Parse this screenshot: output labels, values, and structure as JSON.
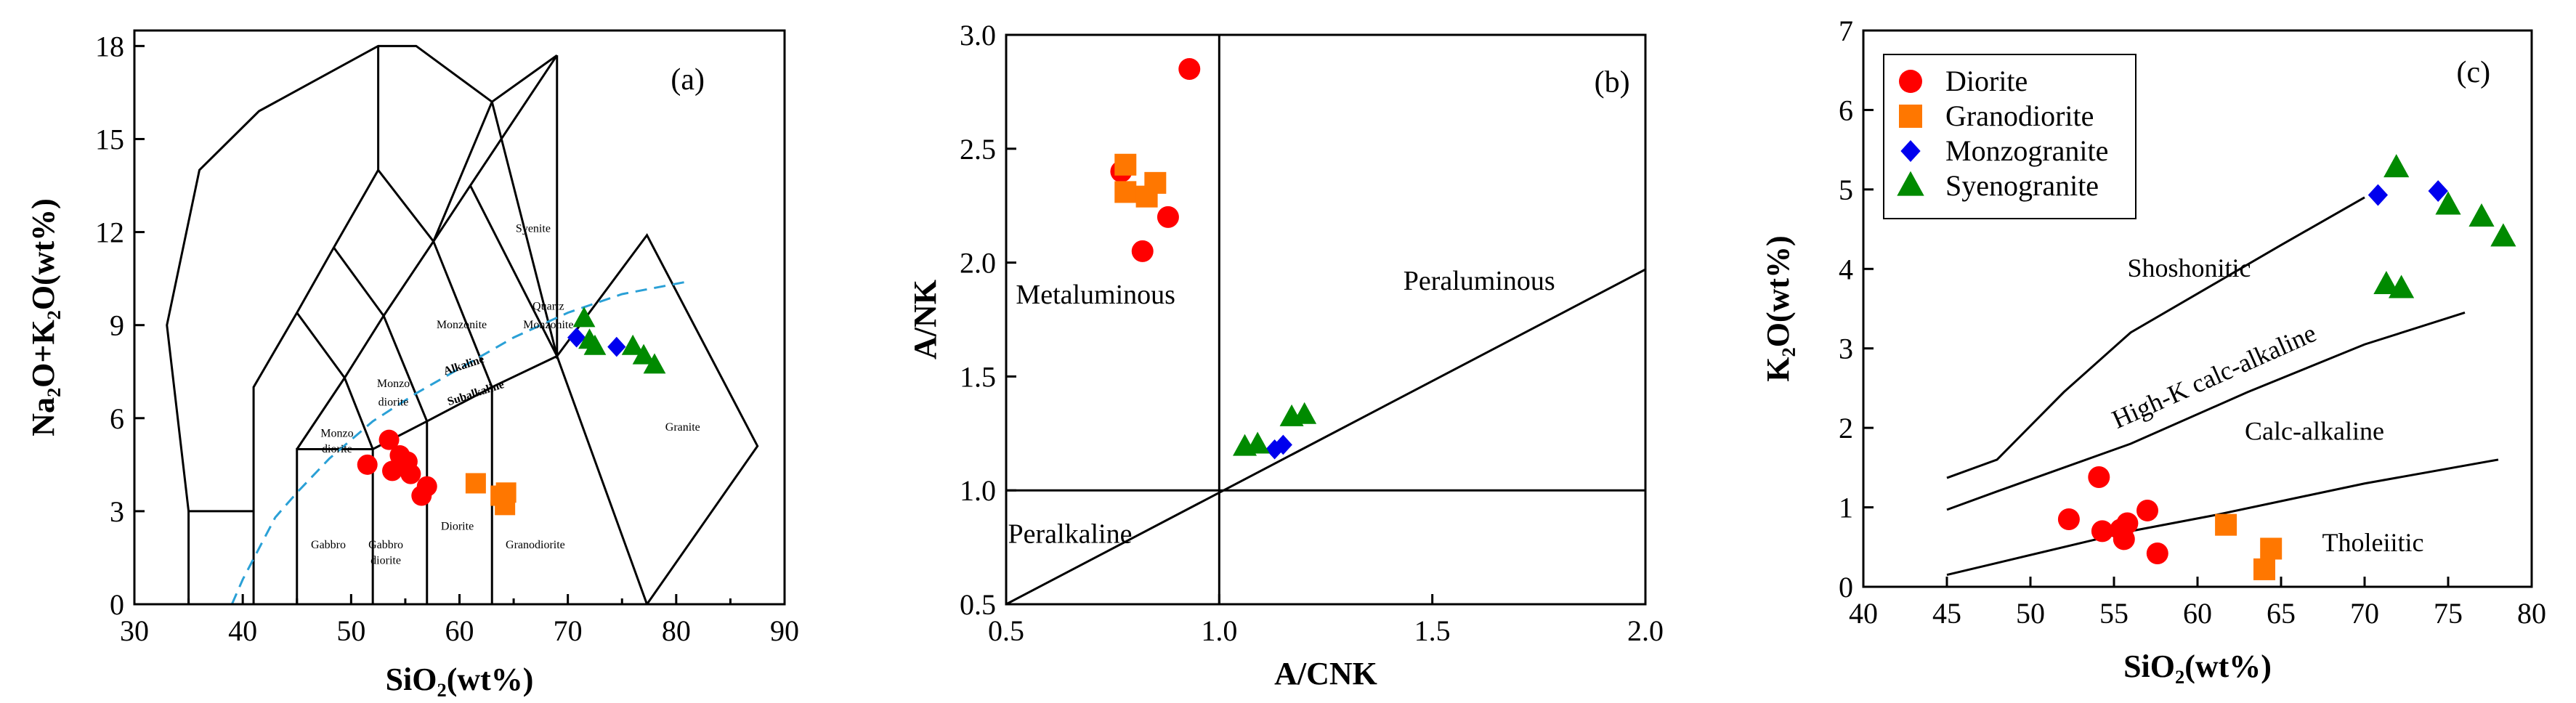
{
  "colors": {
    "diorite": "#ff0000",
    "granodiorite": "#ff7700",
    "monzogranite": "#0000ee",
    "syenogranite": "#008a00",
    "alkaline_line": "#2aa0d6"
  },
  "chart_data": [
    {
      "type": "scatter",
      "panel_label": "(a)",
      "xlabel": "SiO₂(wt%)",
      "ylabel": "Na₂O+K₂O(wt%)",
      "xlim": [
        30,
        90
      ],
      "ylim": [
        0,
        18.5
      ],
      "xticks": [
        30,
        40,
        50,
        60,
        70,
        80,
        90
      ],
      "yticks": [
        0,
        3,
        6,
        9,
        12,
        15,
        18
      ],
      "field_labels": [
        "Syenite",
        "Quartz",
        "Monzonite",
        "Monzonite",
        "Alkaline",
        "Subalkaline",
        "Monzo",
        "diorite",
        "Monzo",
        "diorite",
        "Gabbro",
        "Gabbro",
        "diorite",
        "Diorite",
        "Granodiorite",
        "Granite"
      ],
      "series": [
        {
          "name": "Diorite",
          "marker": "circle",
          "x": [
            51.5,
            53.5,
            53.8,
            54.5,
            55.2,
            55.5,
            56.5,
            57.0
          ],
          "y": [
            4.5,
            5.3,
            4.3,
            4.8,
            4.6,
            4.2,
            3.5,
            3.8
          ]
        },
        {
          "name": "Granodiorite",
          "marker": "square",
          "x": [
            61.5,
            63.8,
            64.3,
            64.2
          ],
          "y": [
            3.9,
            3.5,
            3.6,
            3.2
          ]
        },
        {
          "name": "Monzogranite",
          "marker": "diamond",
          "x": [
            70.8,
            74.5
          ],
          "y": [
            8.6,
            8.3
          ]
        },
        {
          "name": "Syenogranite",
          "marker": "triangle",
          "x": [
            71.5,
            72.0,
            72.5,
            76.0,
            77.0,
            78.0
          ],
          "y": [
            9.2,
            8.5,
            8.3,
            8.3,
            8.0,
            7.7
          ]
        }
      ]
    },
    {
      "type": "scatter",
      "panel_label": "(b)",
      "xlabel": "A/CNK",
      "ylabel": "A/NK",
      "xlim": [
        0.5,
        2.0
      ],
      "ylim": [
        0.5,
        3.0
      ],
      "xticks": [
        "0.5",
        "1.0",
        "1.5",
        "2.0"
      ],
      "yticks": [
        "0.5",
        "1.0",
        "1.5",
        "2.0",
        "2.5",
        "3.0"
      ],
      "field_labels": [
        "Metaluminous",
        "Peraluminous",
        "Peralkaline"
      ],
      "series": [
        {
          "name": "Diorite",
          "marker": "circle",
          "x": [
            0.93,
            0.77,
            0.82,
            0.88
          ],
          "y": [
            2.85,
            2.4,
            2.05,
            2.2
          ]
        },
        {
          "name": "Granodiorite",
          "marker": "square",
          "x": [
            0.78,
            0.78,
            0.85,
            0.83
          ],
          "y": [
            2.43,
            2.31,
            2.35,
            2.29
          ]
        },
        {
          "name": "Monzogranite",
          "marker": "diamond",
          "x": [
            1.13,
            1.15
          ],
          "y": [
            1.18,
            1.2
          ]
        },
        {
          "name": "Syenogranite",
          "marker": "triangle",
          "x": [
            1.06,
            1.09,
            1.17,
            1.2
          ],
          "y": [
            1.19,
            1.2,
            1.32,
            1.33
          ]
        }
      ]
    },
    {
      "type": "scatter",
      "panel_label": "(c)",
      "xlabel": "SiO₂(wt%)",
      "ylabel": "K₂O(wt%)",
      "xlim": [
        40,
        80
      ],
      "ylim": [
        0,
        7
      ],
      "xticks": [
        40,
        45,
        50,
        55,
        60,
        65,
        70,
        75,
        80
      ],
      "yticks": [
        0,
        1,
        2,
        3,
        4,
        5,
        6,
        7
      ],
      "field_labels": [
        "Shoshonitic",
        "High-K calc-alkaline",
        "Calc-alkaline",
        "Tholeiitic"
      ],
      "legend": {
        "position": "top-left",
        "entries": [
          "Diorite",
          "Granodiorite",
          "Monzogranite",
          "Syenogranite"
        ]
      },
      "series": [
        {
          "name": "Diorite",
          "marker": "circle",
          "x": [
            52.3,
            54.1,
            54.3,
            55.4,
            55.6,
            55.8,
            57.0,
            57.6
          ],
          "y": [
            0.85,
            1.38,
            0.7,
            0.72,
            0.6,
            0.8,
            0.96,
            0.42
          ]
        },
        {
          "name": "Granodiorite",
          "marker": "square",
          "x": [
            61.7,
            64.4,
            64.0
          ],
          "y": [
            0.78,
            0.48,
            0.22
          ]
        },
        {
          "name": "Monzogranite",
          "marker": "diamond",
          "x": [
            70.8,
            74.4
          ],
          "y": [
            4.93,
            4.98
          ]
        },
        {
          "name": "Syenogranite",
          "marker": "triangle",
          "x": [
            71.9,
            75.0,
            77.0,
            78.3,
            71.3,
            72.2
          ],
          "y": [
            5.27,
            4.8,
            4.65,
            4.4,
            3.8,
            3.75
          ]
        }
      ]
    }
  ]
}
